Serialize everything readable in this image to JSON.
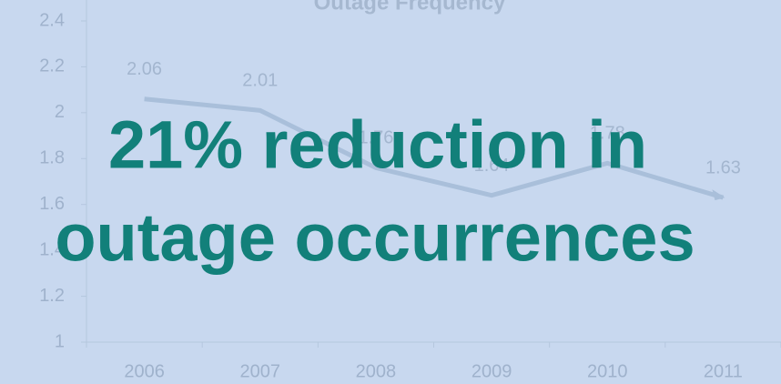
{
  "chart_data": {
    "type": "line",
    "title": "Outage Frequency",
    "categories": [
      "2006",
      "2007",
      "2008",
      "2009",
      "2010",
      "2011"
    ],
    "values": [
      2.06,
      2.01,
      1.76,
      1.64,
      1.78,
      1.63
    ],
    "color": "#a9bfda",
    "ylim": [
      1,
      2.4
    ],
    "yticks": [
      1,
      1.2,
      1.4,
      1.6,
      1.8,
      2,
      2.2,
      2.4
    ],
    "annotations": [
      "21% reduction in",
      "outage occurrences"
    ]
  }
}
